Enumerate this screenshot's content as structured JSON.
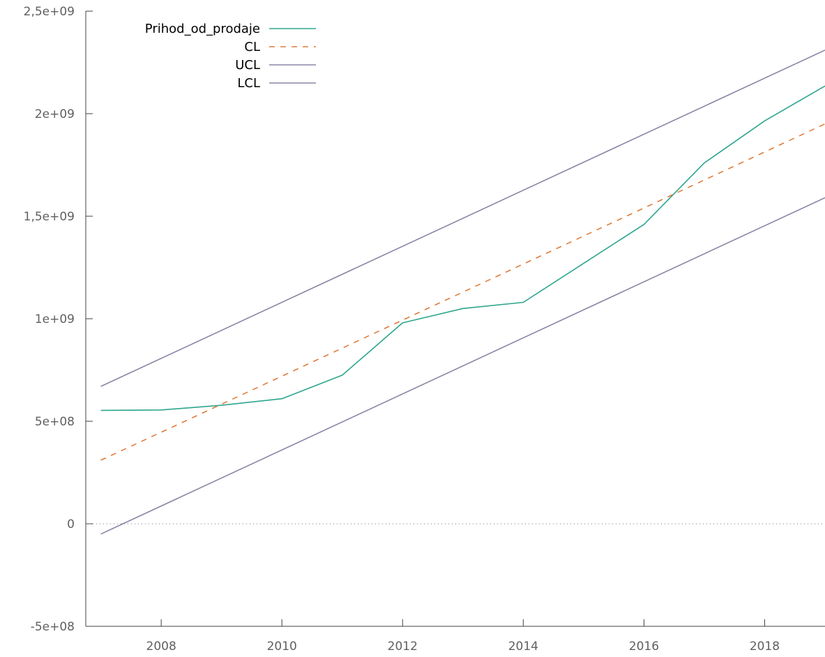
{
  "chart_data": {
    "type": "line",
    "title": "",
    "xlabel": "",
    "ylabel": "",
    "xlim": [
      2006.75,
      2019
    ],
    "ylim": [
      -500000000,
      2500000000
    ],
    "xticks": [
      2008,
      2010,
      2012,
      2014,
      2016,
      2018
    ],
    "xtick_labels": [
      "2008",
      "2010",
      "2012",
      "2014",
      "2016",
      "2018"
    ],
    "yticks": [
      -500000000,
      0,
      500000000,
      1000000000,
      1500000000,
      2000000000,
      2500000000
    ],
    "ytick_labels": [
      "-5e+08",
      "0",
      "5e+08",
      "1e+09",
      "1,5e+09",
      "2e+09",
      "2,5e+09"
    ],
    "zero_line": true,
    "grid": false,
    "legend_position": "top-left",
    "series": [
      {
        "name": "Prihod_od_prodaje",
        "color": "#2ca58d",
        "style": "solid",
        "x": [
          2007,
          2008,
          2009,
          2010,
          2011,
          2012,
          2013,
          2014,
          2015,
          2016,
          2017,
          2018,
          2019
        ],
        "y": [
          553000000,
          555000000,
          578000000,
          610000000,
          725000000,
          980000000,
          1050000000,
          1080000000,
          1270000000,
          1460000000,
          1760000000,
          1965000000,
          2135000000
        ]
      },
      {
        "name": "CL",
        "color": "#e07b39",
        "style": "dashed",
        "x": [
          2007,
          2019
        ],
        "y": [
          310000000,
          1950000000
        ]
      },
      {
        "name": "UCL",
        "color": "#8c84a6",
        "style": "solid",
        "x": [
          2007,
          2019
        ],
        "y": [
          670000000,
          2310000000
        ]
      },
      {
        "name": "LCL",
        "color": "#8c84a6",
        "style": "solid",
        "x": [
          2007,
          2019
        ],
        "y": [
          -50000000,
          1590000000
        ]
      }
    ]
  }
}
